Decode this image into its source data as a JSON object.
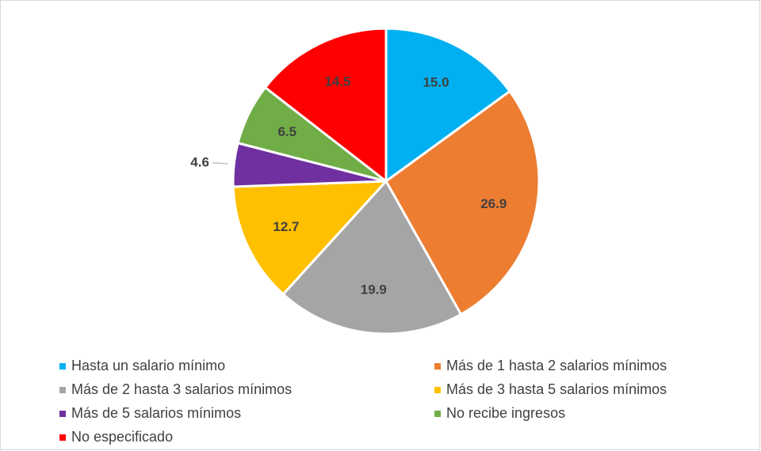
{
  "chart_data": {
    "type": "pie",
    "categories": [
      "Hasta un salario mínimo",
      "Más de 1 hasta 2 salarios mínimos",
      "Más de 2 hasta 3 salarios mínimos",
      "Más de 3 hasta 5 salarios mínimos",
      "Más de 5 salarios mínimos",
      "No recibe ingresos",
      "No especificado"
    ],
    "values": [
      15.0,
      26.9,
      19.9,
      12.7,
      4.6,
      6.5,
      14.5
    ],
    "value_labels": [
      "15.0",
      "26.9",
      "19.9",
      "12.7",
      "4.6",
      "6.5",
      "14.5"
    ],
    "colors": [
      "#00b0f0",
      "#ed7d31",
      "#a5a5a5",
      "#ffc000",
      "#7030a0",
      "#70ad47",
      "#ff0000"
    ],
    "legend": "bottom"
  }
}
